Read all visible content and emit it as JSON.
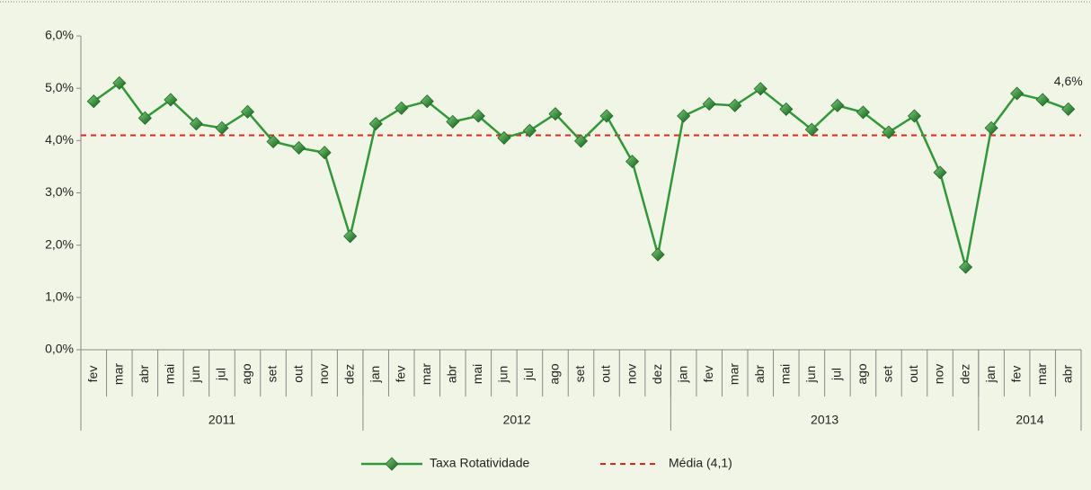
{
  "chart_data": {
    "type": "line",
    "categories": [
      "fev",
      "mar",
      "abr",
      "mai",
      "jun",
      "jul",
      "ago",
      "set",
      "out",
      "nov",
      "dez",
      "jan",
      "fev",
      "mar",
      "abr",
      "mai",
      "jun",
      "jul",
      "ago",
      "set",
      "out",
      "nov",
      "dez",
      "jan",
      "fev",
      "mar",
      "abr",
      "mai",
      "jun",
      "jul",
      "ago",
      "set",
      "out",
      "nov",
      "dez",
      "jan",
      "fev",
      "mar",
      "abr"
    ],
    "groups": [
      {
        "label": "2011",
        "span": 11
      },
      {
        "label": "2012",
        "span": 12
      },
      {
        "label": "2013",
        "span": 12
      },
      {
        "label": "2014",
        "span": 4
      }
    ],
    "series": [
      {
        "name": "Taxa Rotatividade",
        "color": "#2e9a36",
        "values": [
          4.75,
          5.1,
          4.43,
          4.78,
          4.32,
          4.24,
          4.55,
          3.98,
          3.86,
          3.77,
          2.17,
          4.32,
          4.62,
          4.75,
          4.36,
          4.47,
          4.05,
          4.19,
          4.51,
          3.99,
          4.47,
          3.6,
          1.82,
          4.47,
          4.7,
          4.67,
          4.99,
          4.6,
          4.21,
          4.67,
          4.54,
          4.16,
          4.47,
          3.39,
          1.58,
          4.24,
          4.9,
          4.78,
          4.6
        ],
        "value_labels": [
          null,
          null,
          null,
          null,
          null,
          null,
          null,
          null,
          null,
          null,
          null,
          null,
          null,
          null,
          null,
          null,
          null,
          null,
          null,
          null,
          null,
          null,
          null,
          null,
          null,
          null,
          null,
          null,
          null,
          null,
          null,
          null,
          null,
          null,
          null,
          null,
          null,
          null,
          "4,6%"
        ]
      }
    ],
    "reference_line": {
      "name": "Média (4,1)",
      "value": 4.1,
      "color": "#e8231f"
    },
    "ylim": [
      0,
      6
    ],
    "yticks": [
      {
        "value": 0,
        "label": "0,0%"
      },
      {
        "value": 1,
        "label": "1,0%"
      },
      {
        "value": 2,
        "label": "2,0%"
      },
      {
        "value": 3,
        "label": "3,0%"
      },
      {
        "value": 4,
        "label": "4,0%"
      },
      {
        "value": 5,
        "label": "5,0%"
      },
      {
        "value": 6,
        "label": "6,0%"
      }
    ]
  }
}
